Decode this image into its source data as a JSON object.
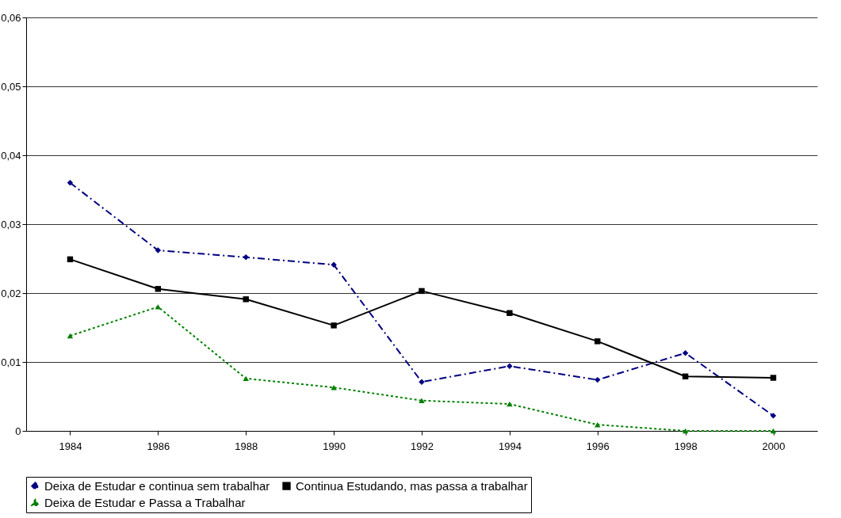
{
  "chart_data": {
    "type": "line",
    "categories": [
      "1984",
      "1986",
      "1988",
      "1990",
      "1992",
      "1994",
      "1996",
      "1998",
      "2000"
    ],
    "ylim": [
      0,
      0.06
    ],
    "yticks": [
      0,
      {
        "value": 0.01,
        "label": "0,01"
      },
      {
        "value": 0.02,
        "label": "0,02"
      },
      {
        "value": 0.03,
        "label": "0,03"
      },
      {
        "value": 0.04,
        "label": "0,04"
      },
      {
        "value": 0.05,
        "label": "0,05"
      },
      {
        "value": 0.06,
        "label": "0,06"
      }
    ],
    "grid": "y",
    "legend": "bottom",
    "series": [
      {
        "name": "Deixa de Estudar e continua sem trabalhar",
        "color": "#000080",
        "marker": "diamond",
        "line_style": "dashed",
        "values": [
          0.036,
          0.0262,
          0.0252,
          0.0241,
          0.0071,
          0.0094,
          0.0074,
          0.0113,
          0.0022
        ]
      },
      {
        "name": "Continua Estudando, mas passa a trabalhar",
        "color": "#000000",
        "marker": "square",
        "line_style": "solid",
        "values": [
          0.0249,
          0.0206,
          0.0191,
          0.0153,
          0.0203,
          0.0171,
          0.013,
          0.0079,
          0.0077
        ]
      },
      {
        "name": "Deixa de Estudar e Passa a Trabalhar",
        "color": "#008000",
        "marker": "triangle",
        "line_style": "dotted",
        "values": [
          0.0138,
          0.018,
          0.0076,
          0.0063,
          0.0044,
          0.0039,
          0.0009,
          0,
          0
        ]
      }
    ]
  }
}
